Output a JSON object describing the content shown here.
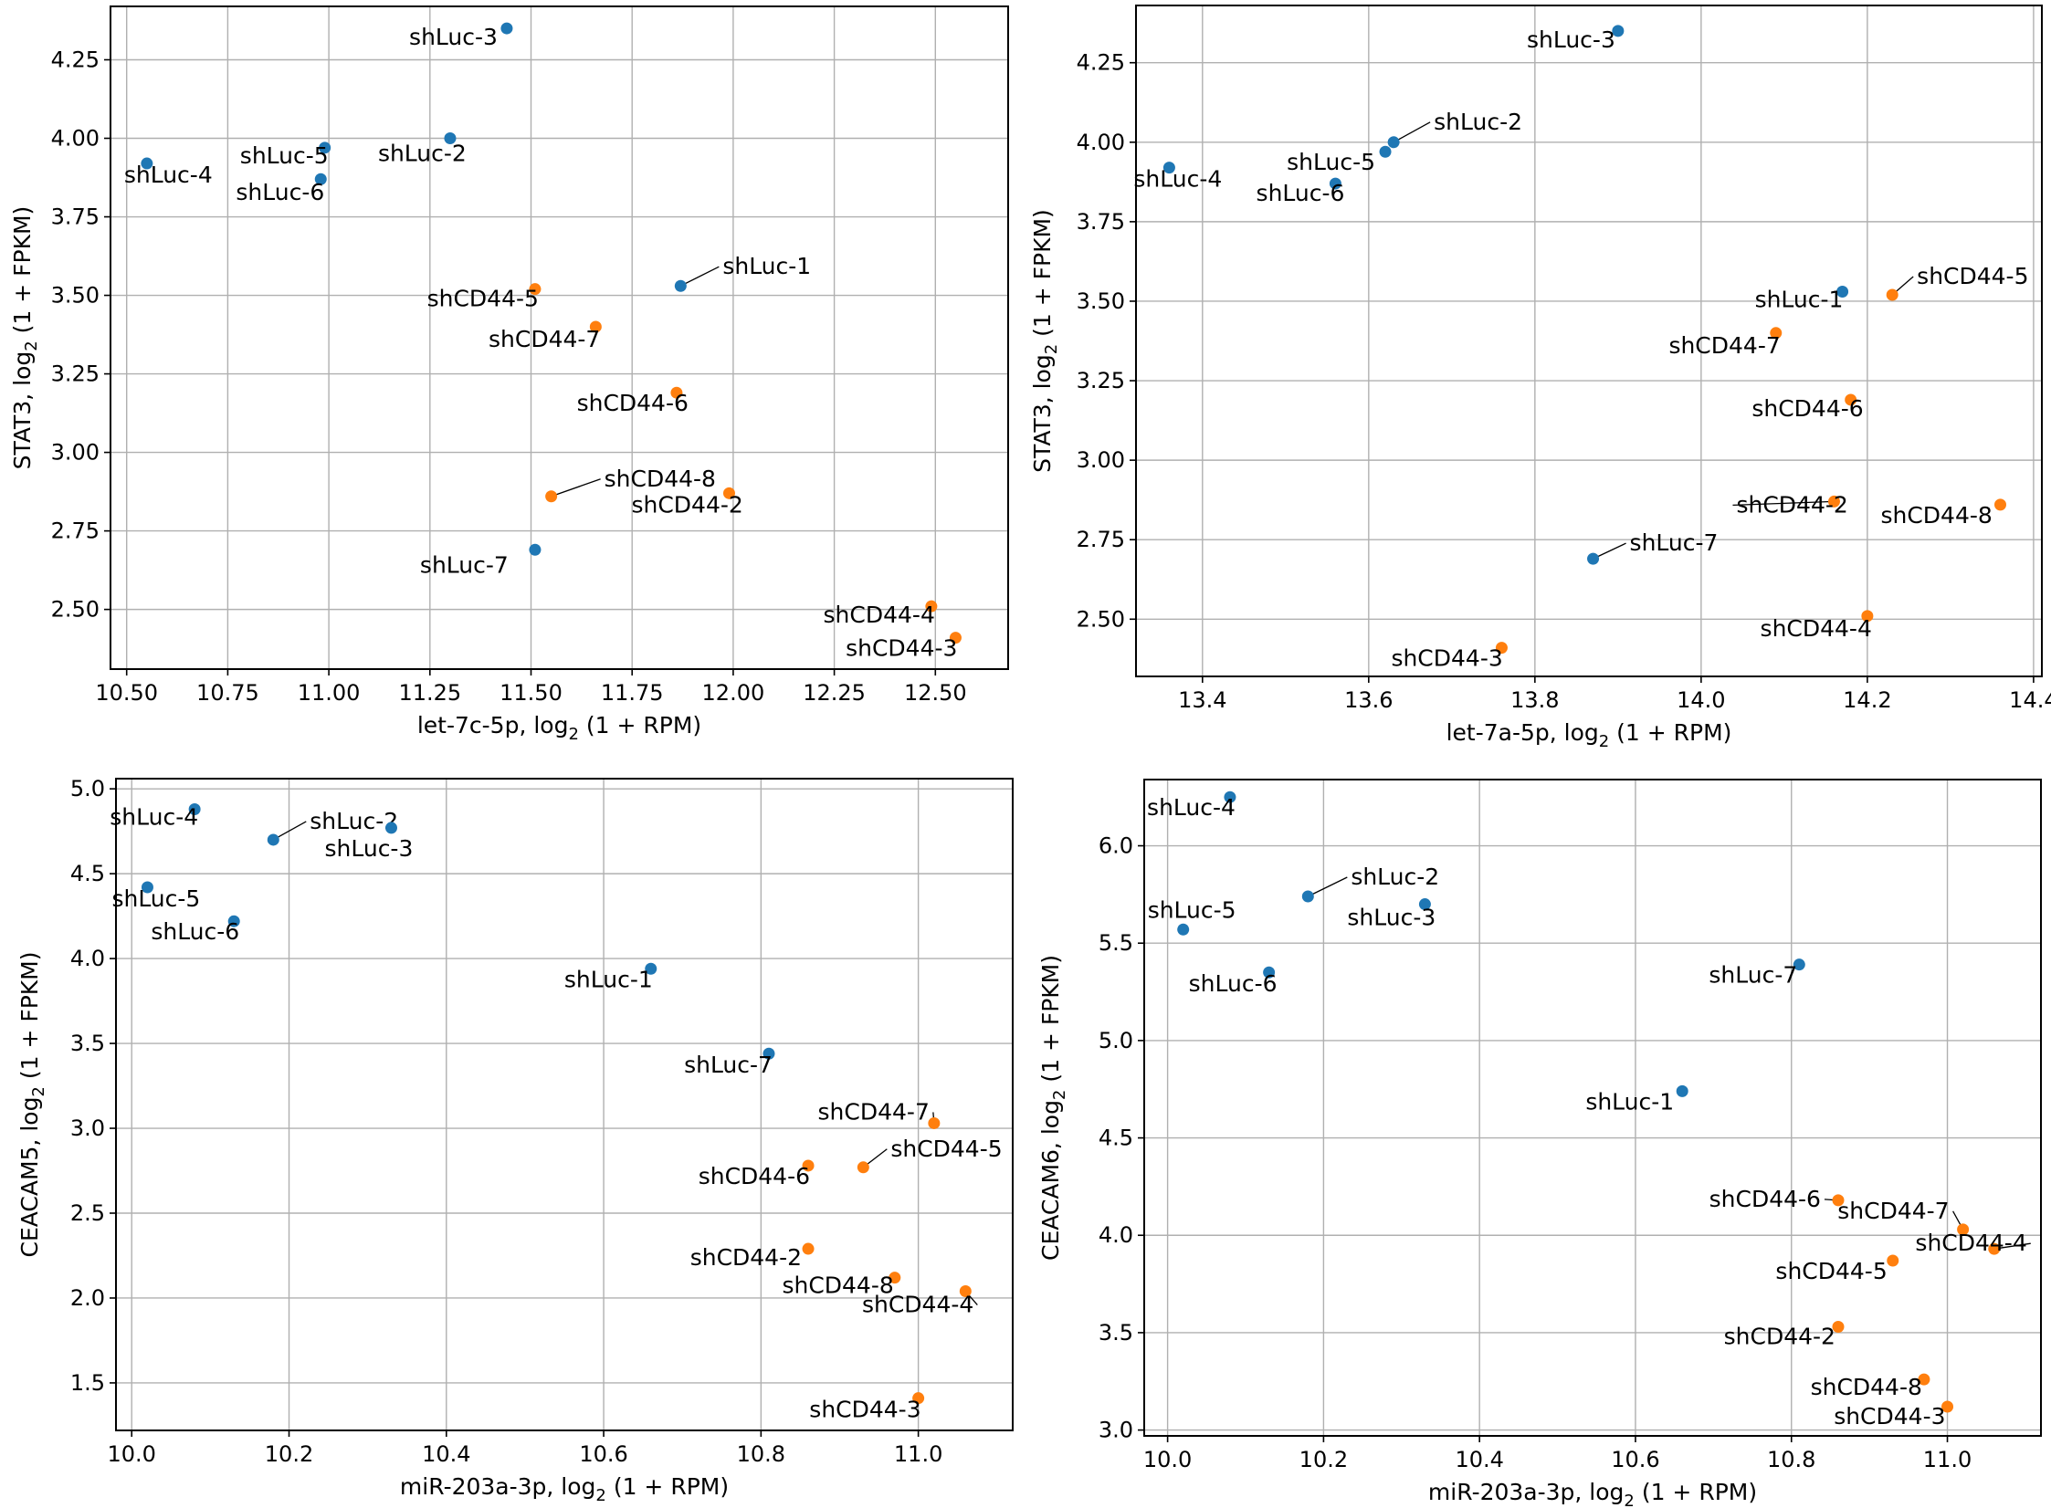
{
  "colors": {
    "shLuc": "#1f77b4",
    "shCD44": "#ff7f0e"
  },
  "chart_data": [
    {
      "type": "scatter",
      "title": "",
      "xlabel_prefix": "let-7c-5p, log",
      "xlabel_sub": "2",
      "xlabel_suffix": " (1 + RPM)",
      "ylabel_prefix": "STAT3, log",
      "ylabel_sub": "2",
      "ylabel_suffix": " (1 + FPKM)",
      "xlim": [
        10.46,
        12.68
      ],
      "ylim": [
        2.31,
        4.42
      ],
      "xticks": [
        10.5,
        10.75,
        11.0,
        11.25,
        11.5,
        11.75,
        12.0,
        12.25,
        12.5
      ],
      "xtick_labels": [
        "10.50",
        "10.75",
        "11.00",
        "11.25",
        "11.50",
        "11.75",
        "12.00",
        "12.25",
        "12.50"
      ],
      "yticks": [
        2.5,
        2.75,
        3.0,
        3.25,
        3.5,
        3.75,
        4.0,
        4.25
      ],
      "ytick_labels": [
        "2.50",
        "2.75",
        "3.00",
        "3.25",
        "3.50",
        "3.75",
        "4.00",
        "4.25"
      ],
      "points": [
        {
          "label": "shLuc-3",
          "group": "shLuc",
          "x": 11.44,
          "y": 4.35
        },
        {
          "label": "shLuc-4",
          "group": "shLuc",
          "x": 10.55,
          "y": 3.92
        },
        {
          "label": "shLuc-5",
          "group": "shLuc",
          "x": 10.99,
          "y": 3.97
        },
        {
          "label": "shLuc-6",
          "group": "shLuc",
          "x": 10.98,
          "y": 3.87
        },
        {
          "label": "shLuc-2",
          "group": "shLuc",
          "x": 11.3,
          "y": 4.0
        },
        {
          "label": "shLuc-1",
          "group": "shLuc",
          "x": 11.87,
          "y": 3.53
        },
        {
          "label": "shLuc-7",
          "group": "shLuc",
          "x": 11.51,
          "y": 2.69
        },
        {
          "label": "shCD44-5",
          "group": "shCD44",
          "x": 11.51,
          "y": 3.52
        },
        {
          "label": "shCD44-7",
          "group": "shCD44",
          "x": 11.66,
          "y": 3.4
        },
        {
          "label": "shCD44-6",
          "group": "shCD44",
          "x": 11.86,
          "y": 3.19
        },
        {
          "label": "shCD44-8",
          "group": "shCD44",
          "x": 11.55,
          "y": 2.86
        },
        {
          "label": "shCD44-2",
          "group": "shCD44",
          "x": 11.99,
          "y": 2.87
        },
        {
          "label": "shCD44-4",
          "group": "shCD44",
          "x": 12.49,
          "y": 2.51
        },
        {
          "label": "shCD44-3",
          "group": "shCD44",
          "x": 12.55,
          "y": 2.41
        }
      ]
    },
    {
      "type": "scatter",
      "title": "",
      "xlabel_prefix": "let-7a-5p, log",
      "xlabel_sub": "2",
      "xlabel_suffix": " (1 + RPM)",
      "ylabel_prefix": "STAT3, log",
      "ylabel_sub": "2",
      "ylabel_suffix": " (1 + FPKM)",
      "xlim": [
        13.32,
        14.41
      ],
      "ylim": [
        2.32,
        4.43
      ],
      "xticks": [
        13.4,
        13.6,
        13.8,
        14.0,
        14.2,
        14.4
      ],
      "xtick_labels": [
        "13.4",
        "13.6",
        "13.8",
        "14.0",
        "14.2",
        "14.4"
      ],
      "yticks": [
        2.5,
        2.75,
        3.0,
        3.25,
        3.5,
        3.75,
        4.0,
        4.25
      ],
      "ytick_labels": [
        "2.50",
        "2.75",
        "3.00",
        "3.25",
        "3.50",
        "3.75",
        "4.00",
        "4.25"
      ],
      "points": [
        {
          "label": "shLuc-3",
          "group": "shLuc",
          "x": 13.9,
          "y": 4.35
        },
        {
          "label": "shLuc-4",
          "group": "shLuc",
          "x": 13.36,
          "y": 3.92
        },
        {
          "label": "shLuc-2",
          "group": "shLuc",
          "x": 13.63,
          "y": 4.0
        },
        {
          "label": "shLuc-5",
          "group": "shLuc",
          "x": 13.62,
          "y": 3.97
        },
        {
          "label": "shLuc-6",
          "group": "shLuc",
          "x": 13.56,
          "y": 3.87
        },
        {
          "label": "shLuc-1",
          "group": "shLuc",
          "x": 14.17,
          "y": 3.53
        },
        {
          "label": "shLuc-7",
          "group": "shLuc",
          "x": 13.87,
          "y": 2.69
        },
        {
          "label": "shCD44-5",
          "group": "shCD44",
          "x": 14.23,
          "y": 3.52
        },
        {
          "label": "shCD44-7",
          "group": "shCD44",
          "x": 14.09,
          "y": 3.4
        },
        {
          "label": "shCD44-6",
          "group": "shCD44",
          "x": 14.18,
          "y": 3.19
        },
        {
          "label": "shCD44-2",
          "group": "shCD44",
          "x": 14.16,
          "y": 2.87
        },
        {
          "label": "shCD44-8",
          "group": "shCD44",
          "x": 14.36,
          "y": 2.86
        },
        {
          "label": "shCD44-4",
          "group": "shCD44",
          "x": 14.2,
          "y": 2.51
        },
        {
          "label": "shCD44-3",
          "group": "shCD44",
          "x": 13.76,
          "y": 2.41
        }
      ]
    },
    {
      "type": "scatter",
      "title": "",
      "xlabel_prefix": "miR-203a-3p, log",
      "xlabel_sub": "2",
      "xlabel_suffix": " (1 + RPM)",
      "ylabel_prefix": "CEACAM5, log",
      "ylabel_sub": "2",
      "ylabel_suffix": " (1 + FPKM)",
      "xlim": [
        9.98,
        11.12
      ],
      "ylim": [
        1.22,
        5.06
      ],
      "xticks": [
        10.0,
        10.2,
        10.4,
        10.6,
        10.8,
        11.0
      ],
      "xtick_labels": [
        "10.0",
        "10.2",
        "10.4",
        "10.6",
        "10.8",
        "11.0"
      ],
      "yticks": [
        1.5,
        2.0,
        2.5,
        3.0,
        3.5,
        4.0,
        4.5,
        5.0
      ],
      "ytick_labels": [
        "1.5",
        "2.0",
        "2.5",
        "3.0",
        "3.5",
        "4.0",
        "4.5",
        "5.0"
      ],
      "points": [
        {
          "label": "shLuc-4",
          "group": "shLuc",
          "x": 10.08,
          "y": 4.88
        },
        {
          "label": "shLuc-2",
          "group": "shLuc",
          "x": 10.18,
          "y": 4.7
        },
        {
          "label": "shLuc-3",
          "group": "shLuc",
          "x": 10.33,
          "y": 4.77
        },
        {
          "label": "shLuc-5",
          "group": "shLuc",
          "x": 10.02,
          "y": 4.42
        },
        {
          "label": "shLuc-6",
          "group": "shLuc",
          "x": 10.13,
          "y": 4.22
        },
        {
          "label": "shLuc-1",
          "group": "shLuc",
          "x": 10.66,
          "y": 3.94
        },
        {
          "label": "shLuc-7",
          "group": "shLuc",
          "x": 10.81,
          "y": 3.44
        },
        {
          "label": "shCD44-7",
          "group": "shCD44",
          "x": 11.02,
          "y": 3.03
        },
        {
          "label": "shCD44-6",
          "group": "shCD44",
          "x": 10.86,
          "y": 2.78
        },
        {
          "label": "shCD44-5",
          "group": "shCD44",
          "x": 10.93,
          "y": 2.77
        },
        {
          "label": "shCD44-2",
          "group": "shCD44",
          "x": 10.86,
          "y": 2.29
        },
        {
          "label": "shCD44-8",
          "group": "shCD44",
          "x": 10.97,
          "y": 2.12
        },
        {
          "label": "shCD44-4",
          "group": "shCD44",
          "x": 11.06,
          "y": 2.04
        },
        {
          "label": "shCD44-3",
          "group": "shCD44",
          "x": 11.0,
          "y": 1.41
        }
      ]
    },
    {
      "type": "scatter",
      "title": "",
      "xlabel_prefix": "miR-203a-3p, log",
      "xlabel_sub": "2",
      "xlabel_suffix": " (1 + RPM)",
      "ylabel_prefix": "CEACAM6, log",
      "ylabel_sub": "2",
      "ylabel_suffix": " (1 + FPKM)",
      "xlim": [
        9.97,
        11.12
      ],
      "ylim": [
        2.97,
        6.34
      ],
      "xticks": [
        10.0,
        10.2,
        10.4,
        10.6,
        10.8,
        11.0
      ],
      "xtick_labels": [
        "10.0",
        "10.2",
        "10.4",
        "10.6",
        "10.8",
        "11.0"
      ],
      "yticks": [
        3.0,
        3.5,
        4.0,
        4.5,
        5.0,
        5.5,
        6.0
      ],
      "ytick_labels": [
        "3.0",
        "3.5",
        "4.0",
        "4.5",
        "5.0",
        "5.5",
        "6.0"
      ],
      "points": [
        {
          "label": "shLuc-4",
          "group": "shLuc",
          "x": 10.08,
          "y": 6.25
        },
        {
          "label": "shLuc-2",
          "group": "shLuc",
          "x": 10.18,
          "y": 5.74
        },
        {
          "label": "shLuc-3",
          "group": "shLuc",
          "x": 10.33,
          "y": 5.7
        },
        {
          "label": "shLuc-5",
          "group": "shLuc",
          "x": 10.02,
          "y": 5.57
        },
        {
          "label": "shLuc-6",
          "group": "shLuc",
          "x": 10.13,
          "y": 5.35
        },
        {
          "label": "shLuc-7",
          "group": "shLuc",
          "x": 10.81,
          "y": 5.39
        },
        {
          "label": "shLuc-1",
          "group": "shLuc",
          "x": 10.66,
          "y": 4.74
        },
        {
          "label": "shCD44-6",
          "group": "shCD44",
          "x": 10.86,
          "y": 4.18
        },
        {
          "label": "shCD44-7",
          "group": "shCD44",
          "x": 11.02,
          "y": 4.03
        },
        {
          "label": "shCD44-4",
          "group": "shCD44",
          "x": 11.06,
          "y": 3.93
        },
        {
          "label": "shCD44-5",
          "group": "shCD44",
          "x": 10.93,
          "y": 3.87
        },
        {
          "label": "shCD44-2",
          "group": "shCD44",
          "x": 10.86,
          "y": 3.53
        },
        {
          "label": "shCD44-8",
          "group": "shCD44",
          "x": 10.97,
          "y": 3.26
        },
        {
          "label": "shCD44-3",
          "group": "shCD44",
          "x": 11.0,
          "y": 3.12
        }
      ]
    }
  ]
}
